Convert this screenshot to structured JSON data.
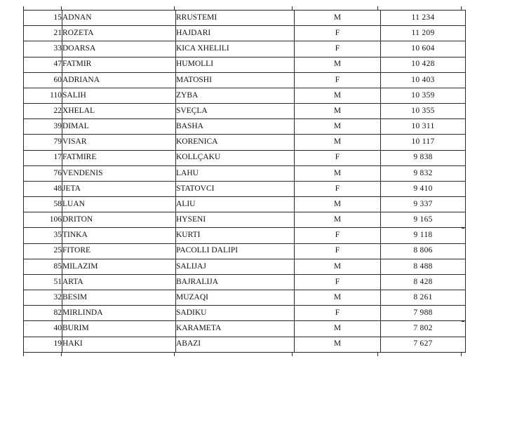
{
  "table": {
    "rows": [
      {
        "no": "15",
        "first": "ADNAN",
        "last": "RRUSTEMI",
        "gender": "M",
        "count": "11 234"
      },
      {
        "no": "21",
        "first": "ROZETA",
        "last": "HAJDARI",
        "gender": "F",
        "count": "11 209"
      },
      {
        "no": "33",
        "first": "DOARSA",
        "last": "KICA XHELILI",
        "gender": "F",
        "count": "10 604"
      },
      {
        "no": "47",
        "first": "FATMIR",
        "last": "HUMOLLI",
        "gender": "M",
        "count": "10 428"
      },
      {
        "no": "60",
        "first": "ADRIANA",
        "last": "MATOSHI",
        "gender": "F",
        "count": "10 403"
      },
      {
        "no": "110",
        "first": "SALIH",
        "last": "ZYBA",
        "gender": "M",
        "count": "10 359"
      },
      {
        "no": "22",
        "first": "XHELAL",
        "last": "SVEÇLA",
        "gender": "M",
        "count": "10 355"
      },
      {
        "no": "39",
        "first": "DIMAL",
        "last": "BASHA",
        "gender": "M",
        "count": "10 311"
      },
      {
        "no": "79",
        "first": "VISAR",
        "last": "KORENICA",
        "gender": "M",
        "count": "10 117"
      },
      {
        "no": "17",
        "first": "FATMIRE",
        "last": "KOLLÇAKU",
        "gender": "F",
        "count": "9 838"
      },
      {
        "no": "76",
        "first": "VENDENIS",
        "last": "LAHU",
        "gender": "M",
        "count": "9 832"
      },
      {
        "no": "48",
        "first": "JETA",
        "last": "STATOVCI",
        "gender": "F",
        "count": "9 410"
      },
      {
        "no": "58",
        "first": "LUAN",
        "last": "ALIU",
        "gender": "M",
        "count": "9 337"
      },
      {
        "no": "106",
        "first": "DRITON",
        "last": "HYSENI",
        "gender": "M",
        "count": "9 165"
      },
      {
        "no": "35",
        "first": "TINKA",
        "last": "KURTI",
        "gender": "F",
        "count": "9 118"
      },
      {
        "no": "25",
        "first": "FITORE",
        "last": "PACOLLI DALIPI",
        "gender": "F",
        "count": "8 806"
      },
      {
        "no": "85",
        "first": "MILAZIM",
        "last": "SALIJAJ",
        "gender": "M",
        "count": "8 488"
      },
      {
        "no": "51",
        "first": "ARTA",
        "last": "BAJRALIJA",
        "gender": "F",
        "count": "8 428"
      },
      {
        "no": "32",
        "first": "BESIM",
        "last": "MUZAQI",
        "gender": "M",
        "count": "8 261"
      },
      {
        "no": "82",
        "first": "MIRLINDA",
        "last": "SADIKU",
        "gender": "F",
        "count": "7 988"
      },
      {
        "no": "40",
        "first": "BURIM",
        "last": "KARAMETA",
        "gender": "M",
        "count": "7 802"
      },
      {
        "no": "19",
        "first": "HAKI",
        "last": "ABAZI",
        "gender": "M",
        "count": "7 627"
      }
    ]
  },
  "colors": {
    "background": "#ffffff",
    "text": "#121212",
    "border": "#2a2a2a"
  }
}
